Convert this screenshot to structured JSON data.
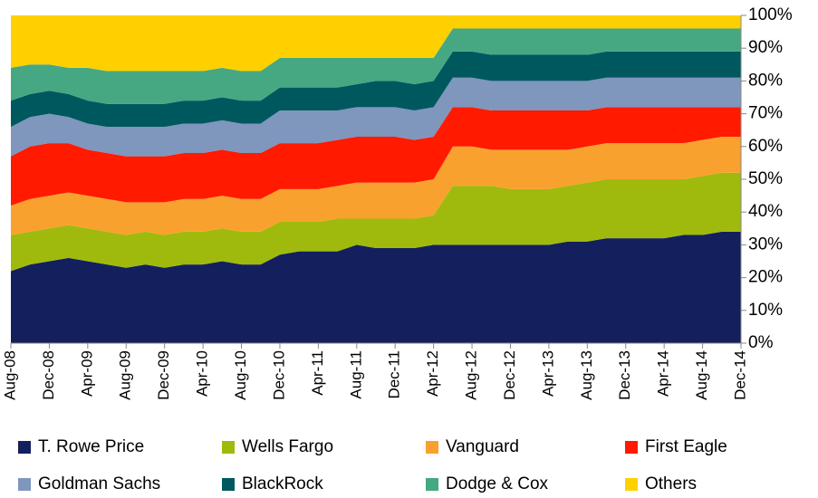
{
  "chart_data": {
    "type": "stacked_area",
    "categories": [
      "Aug-08",
      null,
      "Dec-08",
      null,
      "Apr-09",
      null,
      "Aug-09",
      null,
      "Dec-09",
      null,
      "Apr-10",
      null,
      "Aug-10",
      null,
      "Dec-10",
      null,
      "Apr-11",
      null,
      "Aug-11",
      null,
      "Dec-11",
      null,
      "Apr-12",
      null,
      "Aug-12",
      null,
      "Dec-12",
      null,
      "Apr-13",
      null,
      "Aug-13",
      null,
      "Dec-13",
      null,
      "Apr-14",
      null,
      "Aug-14",
      null,
      "Dec-14"
    ],
    "series": [
      {
        "name": "T. Rowe Price",
        "color": "#14205e",
        "values": [
          22,
          24,
          25,
          26,
          25,
          24,
          23,
          24,
          23,
          24,
          24,
          25,
          24,
          24,
          27,
          28,
          28,
          28,
          30,
          29,
          29,
          29,
          30,
          30,
          30,
          30,
          30,
          30,
          30,
          31,
          31,
          32,
          32,
          32,
          32,
          33,
          33,
          34,
          34
        ]
      },
      {
        "name": "Wells Fargo",
        "color": "#9fba0c",
        "values": [
          11,
          10,
          10,
          10,
          10,
          10,
          10,
          10,
          10,
          10,
          10,
          10,
          10,
          10,
          10,
          9,
          9,
          10,
          8,
          9,
          9,
          9,
          9,
          18,
          18,
          18,
          17,
          17,
          17,
          17,
          18,
          18,
          18,
          18,
          18,
          17,
          18,
          18,
          18
        ]
      },
      {
        "name": "Vanguard",
        "color": "#f9a12e",
        "values": [
          9,
          10,
          10,
          10,
          10,
          10,
          10,
          9,
          10,
          10,
          10,
          10,
          10,
          10,
          10,
          10,
          10,
          10,
          11,
          11,
          11,
          11,
          11,
          12,
          12,
          11,
          12,
          12,
          12,
          11,
          11,
          11,
          11,
          11,
          11,
          11,
          11,
          11,
          11
        ]
      },
      {
        "name": "First Eagle",
        "color": "#ff1a00",
        "values": [
          15,
          16,
          16,
          15,
          14,
          14,
          14,
          14,
          14,
          14,
          14,
          14,
          14,
          14,
          14,
          14,
          14,
          14,
          14,
          14,
          14,
          13,
          13,
          12,
          12,
          12,
          12,
          12,
          12,
          12,
          11,
          11,
          11,
          11,
          11,
          11,
          10,
          9,
          9
        ]
      },
      {
        "name": "Goldman Sachs",
        "color": "#7f96bd",
        "values": [
          9,
          9,
          9,
          8,
          8,
          8,
          9,
          9,
          9,
          9,
          9,
          9,
          9,
          9,
          10,
          10,
          10,
          9,
          9,
          9,
          9,
          9,
          9,
          9,
          9,
          9,
          9,
          9,
          9,
          9,
          9,
          9,
          9,
          9,
          9,
          9,
          9,
          9,
          9
        ]
      },
      {
        "name": "BlackRock",
        "color": "#00585f",
        "values": [
          8,
          7,
          7,
          7,
          7,
          7,
          7,
          7,
          7,
          7,
          7,
          7,
          7,
          7,
          7,
          7,
          7,
          7,
          7,
          8,
          8,
          8,
          8,
          8,
          8,
          8,
          8,
          8,
          8,
          8,
          8,
          8,
          8,
          8,
          8,
          8,
          8,
          8,
          8
        ]
      },
      {
        "name": "Dodge & Cox",
        "color": "#45a882",
        "values": [
          10,
          9,
          8,
          8,
          10,
          10,
          10,
          10,
          10,
          9,
          9,
          9,
          9,
          9,
          9,
          9,
          9,
          9,
          8,
          7,
          7,
          8,
          7,
          7,
          7,
          8,
          8,
          8,
          8,
          8,
          8,
          7,
          7,
          7,
          7,
          7,
          7,
          7,
          7
        ]
      },
      {
        "name": "Others",
        "color": "#ffd000",
        "values": [
          16,
          15,
          15,
          16,
          16,
          17,
          17,
          17,
          17,
          17,
          17,
          16,
          17,
          17,
          13,
          13,
          13,
          13,
          13,
          13,
          13,
          13,
          13,
          4,
          4,
          4,
          4,
          4,
          4,
          4,
          4,
          4,
          4,
          4,
          4,
          4,
          4,
          4,
          4
        ]
      }
    ],
    "ylim": [
      0,
      100
    ],
    "yticks": [
      {
        "value": 0,
        "label": "0%"
      },
      {
        "value": 10,
        "label": "10%"
      },
      {
        "value": 20,
        "label": "20%"
      },
      {
        "value": 30,
        "label": "30%"
      },
      {
        "value": 40,
        "label": "40%"
      },
      {
        "value": 50,
        "label": "50%"
      },
      {
        "value": 60,
        "label": "60%"
      },
      {
        "value": 70,
        "label": "70%"
      },
      {
        "value": 80,
        "label": "80%"
      },
      {
        "value": 90,
        "label": "90%"
      },
      {
        "value": 100,
        "label": "100%"
      }
    ],
    "legend": "bottom"
  }
}
